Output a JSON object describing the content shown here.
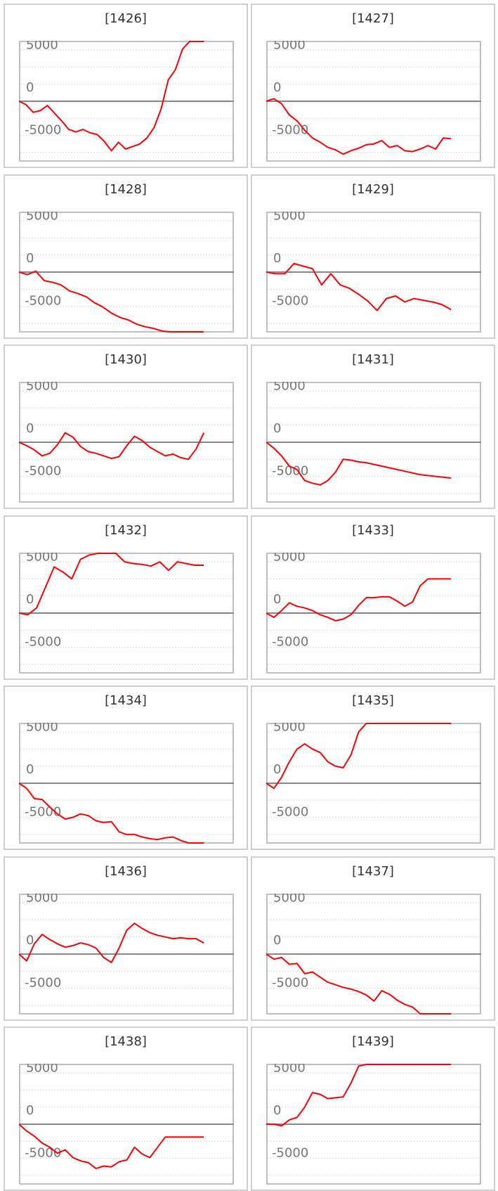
{
  "chart_data": [
    {
      "type": "line",
      "title": "[1426]",
      "ylim": [
        -7000,
        7000
      ],
      "yticks": [
        5000,
        0,
        -5000
      ],
      "x": [
        0,
        1,
        2,
        3,
        4,
        5,
        6,
        7,
        8,
        9,
        10,
        11,
        12,
        13,
        14,
        15,
        16,
        17,
        18,
        19,
        20,
        21,
        22,
        23,
        24,
        25,
        26
      ],
      "values": [
        0,
        -400,
        -1300,
        -1100,
        -500,
        -1400,
        -2300,
        -3300,
        -3600,
        -3300,
        -3700,
        -3900,
        -4700,
        -5800,
        -4800,
        -5600,
        -5300,
        -5000,
        -4300,
        -3100,
        -900,
        2500,
        3700,
        6100,
        7000,
        7000,
        7000
      ]
    },
    {
      "type": "line",
      "title": "[1427]",
      "ylim": [
        -7000,
        7000
      ],
      "yticks": [
        5000,
        0,
        -5000
      ],
      "x": [
        0,
        1,
        2,
        3,
        4,
        5,
        6,
        7,
        8,
        9,
        10,
        11,
        12,
        13,
        14,
        15,
        16,
        17,
        18,
        19,
        20,
        21,
        22,
        23,
        24
      ],
      "values": [
        0,
        300,
        -300,
        -1600,
        -2300,
        -3400,
        -4300,
        -4800,
        -5400,
        -5700,
        -6200,
        -5800,
        -5500,
        -5100,
        -5000,
        -4600,
        -5400,
        -5200,
        -5800,
        -5900,
        -5600,
        -5200,
        -5600,
        -4300,
        -4400
      ]
    },
    {
      "type": "line",
      "title": "[1428]",
      "ylim": [
        -7000,
        7000
      ],
      "yticks": [
        5000,
        0,
        -5000
      ],
      "x": [
        0,
        1,
        2,
        3,
        4,
        5,
        6,
        7,
        8,
        9,
        10,
        11,
        12,
        13,
        14,
        15,
        16,
        17,
        18,
        19,
        20,
        21,
        22
      ],
      "values": [
        0,
        -300,
        100,
        -1000,
        -1200,
        -1500,
        -2200,
        -2500,
        -2900,
        -3600,
        -4100,
        -4800,
        -5300,
        -5600,
        -6100,
        -6400,
        -6600,
        -6900,
        -7000,
        -7000,
        -7000,
        -7000,
        -7000
      ]
    },
    {
      "type": "line",
      "title": "[1429]",
      "ylim": [
        -7000,
        7000
      ],
      "yticks": [
        5000,
        0,
        -5000
      ],
      "x": [
        0,
        1,
        2,
        3,
        4,
        5,
        6,
        7,
        8,
        9,
        10,
        11,
        12,
        13,
        14,
        15,
        16,
        17,
        18,
        19,
        20
      ],
      "values": [
        0,
        -200,
        -200,
        1000,
        700,
        400,
        -1500,
        -200,
        -1500,
        -1900,
        -2600,
        -3400,
        -4500,
        -3100,
        -2800,
        -3500,
        -3100,
        -3300,
        -3500,
        -3800,
        -4400
      ]
    },
    {
      "type": "line",
      "title": "[1430]",
      "ylim": [
        -7000,
        7000
      ],
      "yticks": [
        5000,
        0,
        -5000
      ],
      "x": [
        0,
        1,
        2,
        3,
        4,
        5,
        6,
        7,
        8,
        9,
        10,
        11,
        12,
        13,
        14,
        15,
        16,
        17,
        18,
        19,
        20,
        21,
        22,
        23,
        24
      ],
      "values": [
        0,
        -400,
        -900,
        -1600,
        -1300,
        -300,
        1100,
        600,
        -500,
        -1100,
        -1300,
        -1600,
        -1900,
        -1700,
        -400,
        700,
        200,
        -600,
        -1100,
        -1600,
        -1400,
        -1800,
        -2000,
        -800,
        1100
      ]
    },
    {
      "type": "line",
      "title": "[1431]",
      "ylim": [
        -7000,
        7000
      ],
      "yticks": [
        5000,
        0,
        -5000
      ],
      "x": [
        0,
        1,
        2,
        3,
        4,
        5,
        6,
        7,
        8,
        9,
        10,
        11,
        12,
        13,
        14,
        15,
        16,
        17,
        18,
        19,
        20,
        21,
        22,
        23,
        24
      ],
      "values": [
        0,
        -700,
        -1600,
        -2800,
        -3200,
        -4500,
        -4800,
        -5000,
        -4500,
        -3500,
        -2000,
        -2100,
        -2300,
        -2400,
        -2600,
        -2800,
        -3000,
        -3200,
        -3400,
        -3600,
        -3800,
        -3900,
        -4000,
        -4100,
        -4200
      ]
    },
    {
      "type": "line",
      "title": "[1432]",
      "ylim": [
        -7000,
        7000
      ],
      "yticks": [
        5000,
        0,
        -5000
      ],
      "x": [
        0,
        1,
        2,
        3,
        4,
        5,
        6,
        7,
        8,
        9,
        10,
        11,
        12,
        13,
        14,
        15,
        16,
        17,
        18,
        19,
        20,
        21
      ],
      "values": [
        0,
        -200,
        600,
        3000,
        5400,
        4800,
        4000,
        6300,
        6800,
        7000,
        7000,
        7000,
        6000,
        5800,
        5700,
        5500,
        6000,
        5000,
        6000,
        5800,
        5600,
        5600
      ]
    },
    {
      "type": "line",
      "title": "[1433]",
      "ylim": [
        -7000,
        7000
      ],
      "yticks": [
        5000,
        0,
        -5000
      ],
      "x": [
        0,
        1,
        2,
        3,
        4,
        5,
        6,
        7,
        8,
        9,
        10,
        11,
        12,
        13,
        14,
        15,
        16,
        17,
        18,
        19,
        20,
        21,
        22,
        23,
        24
      ],
      "values": [
        0,
        -500,
        300,
        1200,
        800,
        600,
        300,
        -200,
        -500,
        -900,
        -700,
        -200,
        900,
        1800,
        1800,
        1900,
        1900,
        1400,
        800,
        1300,
        3200,
        4000,
        4000,
        4000,
        4000
      ]
    },
    {
      "type": "line",
      "title": "[1434]",
      "ylim": [
        -7000,
        7000
      ],
      "yticks": [
        5000,
        0,
        -5000
      ],
      "x": [
        0,
        1,
        2,
        3,
        4,
        5,
        6,
        7,
        8,
        9,
        10,
        11,
        12,
        13,
        14,
        15,
        16,
        17,
        18,
        19,
        20,
        21,
        22,
        23,
        24
      ],
      "values": [
        0,
        -600,
        -1800,
        -1900,
        -2800,
        -3600,
        -4200,
        -4000,
        -3600,
        -3800,
        -4400,
        -4600,
        -4500,
        -5700,
        -6000,
        -6000,
        -6300,
        -6500,
        -6600,
        -6400,
        -6300,
        -6700,
        -7000,
        -7000,
        -7000
      ]
    },
    {
      "type": "line",
      "title": "[1435]",
      "ylim": [
        -7000,
        7000
      ],
      "yticks": [
        5000,
        0,
        -5000
      ],
      "x": [
        0,
        1,
        2,
        3,
        4,
        5,
        6,
        7,
        8,
        9,
        10,
        11,
        12,
        13,
        14,
        15,
        16,
        17,
        18,
        19,
        20,
        21,
        22,
        23,
        24
      ],
      "values": [
        0,
        -600,
        700,
        2500,
        4000,
        4600,
        4000,
        3600,
        2500,
        2000,
        1800,
        3300,
        6000,
        7000,
        7000,
        7000,
        7000,
        7000,
        7000,
        7000,
        7000,
        7000,
        7000,
        7000,
        7000
      ]
    },
    {
      "type": "line",
      "title": "[1436]",
      "ylim": [
        -7000,
        7000
      ],
      "yticks": [
        5000,
        0,
        -5000
      ],
      "x": [
        0,
        1,
        2,
        3,
        4,
        5,
        6,
        7,
        8,
        9,
        10,
        11,
        12,
        13,
        14,
        15,
        16,
        17,
        18,
        19,
        20,
        21,
        22,
        23,
        24
      ],
      "values": [
        0,
        -800,
        1200,
        2300,
        1700,
        1200,
        800,
        1000,
        1300,
        1100,
        700,
        -400,
        -1000,
        700,
        2800,
        3600,
        3000,
        2500,
        2200,
        2000,
        1800,
        1900,
        1800,
        1800,
        1300
      ]
    },
    {
      "type": "line",
      "title": "[1437]",
      "ylim": [
        -7000,
        7000
      ],
      "yticks": [
        5000,
        0,
        -5000
      ],
      "x": [
        0,
        1,
        2,
        3,
        4,
        5,
        6,
        7,
        8,
        9,
        10,
        11,
        12,
        13,
        14,
        15,
        16,
        17,
        18,
        19,
        20,
        21,
        22,
        23,
        24
      ],
      "values": [
        0,
        -600,
        -400,
        -1200,
        -1100,
        -2300,
        -2100,
        -2700,
        -3300,
        -3600,
        -3900,
        -4100,
        -4400,
        -4800,
        -5500,
        -4300,
        -4700,
        -5400,
        -5900,
        -6200,
        -7000,
        -7000,
        -7000,
        -7000,
        -7000
      ]
    },
    {
      "type": "line",
      "title": "[1438]",
      "ylim": [
        -7000,
        7000
      ],
      "yticks": [
        5000,
        0,
        -5000
      ],
      "x": [
        0,
        1,
        2,
        3,
        4,
        5,
        6,
        7,
        8,
        9,
        10,
        11,
        12,
        13,
        14,
        15,
        16,
        17,
        18,
        19,
        20,
        21,
        22,
        23,
        24
      ],
      "values": [
        0,
        -800,
        -1400,
        -2200,
        -2700,
        -3400,
        -3000,
        -3900,
        -4300,
        -4500,
        -5200,
        -4900,
        -5000,
        -4400,
        -4200,
        -2700,
        -3500,
        -3900,
        -2700,
        -1500,
        -1500,
        -1500,
        -1500,
        -1500,
        -1500
      ]
    },
    {
      "type": "line",
      "title": "[1439]",
      "ylim": [
        -7000,
        7000
      ],
      "yticks": [
        5000,
        0,
        -5000
      ],
      "x": [
        0,
        1,
        2,
        3,
        4,
        5,
        6,
        7,
        8,
        9,
        10,
        11,
        12,
        13,
        14,
        15,
        16,
        17,
        18,
        19,
        20,
        21,
        22,
        23,
        24
      ],
      "values": [
        0,
        0,
        -200,
        500,
        800,
        2000,
        3700,
        3500,
        3000,
        3100,
        3200,
        4800,
        6800,
        7000,
        7000,
        7000,
        7000,
        7000,
        7000,
        7000,
        7000,
        7000,
        7000,
        7000,
        7000
      ]
    }
  ],
  "style": {
    "line_color": "#ff0000",
    "zero_line_color": "#888888",
    "grid_color": "#dddddd",
    "frame_color": "#c0c0c0"
  }
}
